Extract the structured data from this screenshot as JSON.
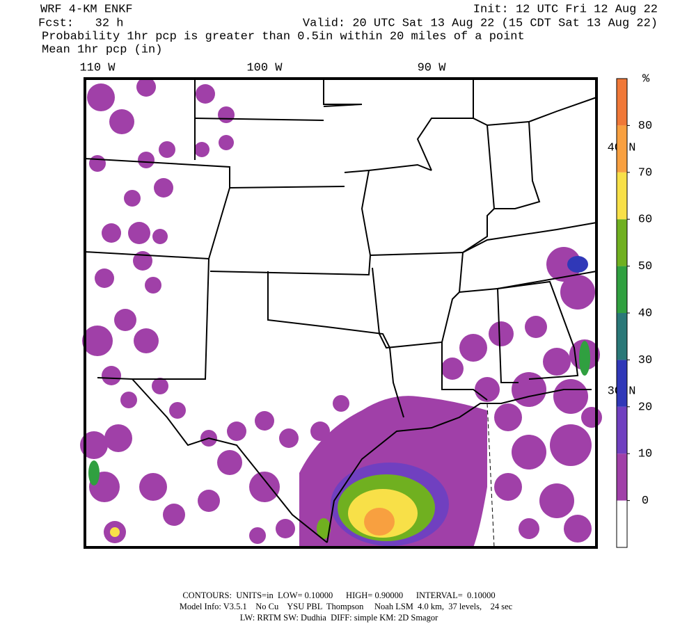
{
  "header": {
    "model": "WRF 4-KM ENKF",
    "init": "Init: 12 UTC Fri 12 Aug 22",
    "fcst": "Fcst:   32 h",
    "valid": "Valid: 20 UTC Sat 13 Aug 22 (15 CDT Sat 13 Aug 22)",
    "field": "Probability 1hr pcp is greater than 0.5in within 20 miles of a point",
    "field2": "Mean 1hr pcp (in)"
  },
  "map": {
    "lon_labels": [
      "110 W",
      "100 W",
      "90 W"
    ],
    "lat_labels": [
      "40 N",
      "30 N"
    ]
  },
  "colorbar": {
    "unit": "%",
    "levels": [
      0,
      10,
      20,
      30,
      40,
      50,
      60,
      70,
      80
    ],
    "colors": [
      "#ffffff",
      "#a040a8",
      "#7040c0",
      "#3038b8",
      "#2a7878",
      "#30a040",
      "#70b020",
      "#f8e048",
      "#f8a040",
      "#f07838"
    ]
  },
  "footer": {
    "line1": "CONTOURS:  UNITS=in  LOW= 0.10000      HIGH= 0.90000      INTERVAL=  0.10000",
    "line2": "Model Info: V3.5.1    No Cu    YSU PBL  Thompson     Noah LSM  4.0 km,  37 levels,    24 sec",
    "line3": "LW: RRTM SW: Dudhia  DIFF: simple KM: 2D Smagor"
  }
}
